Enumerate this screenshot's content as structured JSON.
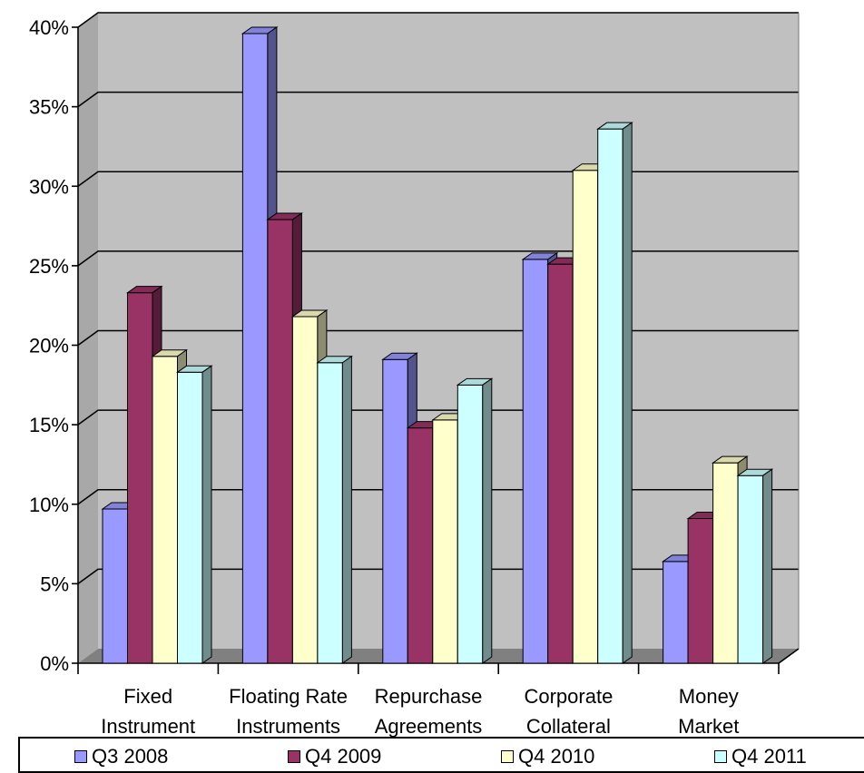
{
  "chart_data": {
    "type": "bar",
    "categories": [
      [
        "Fixed",
        "Instrument"
      ],
      [
        "Floating Rate",
        "Instruments"
      ],
      [
        "Repurchase",
        "Agreements"
      ],
      [
        "Corporate",
        "Collateral"
      ],
      [
        "Money",
        "Market"
      ]
    ],
    "series": [
      {
        "name": "Q3 2008",
        "color": "#9999ff",
        "values": [
          9.7,
          39.6,
          19.1,
          25.4,
          6.4
        ]
      },
      {
        "name": "Q4 2009",
        "color": "#993366",
        "values": [
          23.3,
          27.9,
          14.8,
          25.1,
          9.1
        ]
      },
      {
        "name": "Q4 2010",
        "color": "#ffffcc",
        "values": [
          19.3,
          21.8,
          15.3,
          31.0,
          12.6
        ]
      },
      {
        "name": "Q4 2011",
        "color": "#ccffff",
        "values": [
          18.3,
          18.9,
          17.5,
          33.6,
          11.8
        ]
      }
    ],
    "yticks": [
      "0%",
      "5%",
      "10%",
      "15%",
      "20%",
      "25%",
      "30%",
      "35%",
      "40%"
    ],
    "ylim": [
      0,
      40
    ],
    "grid": true,
    "legend_position": "bottom",
    "style": "3d-clustered-column"
  }
}
